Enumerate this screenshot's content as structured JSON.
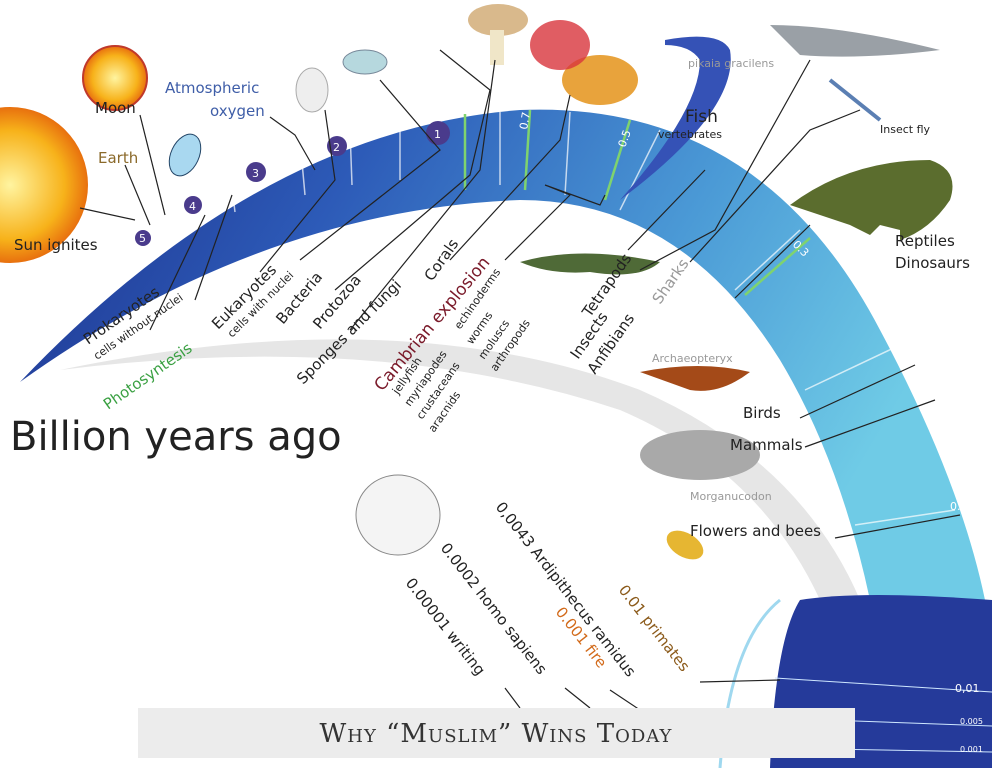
{
  "heading": "Billion years ago",
  "footer": "Why “Muslim” Wins Today",
  "arc_marks": [
    "5",
    "4",
    "3",
    "2",
    "1",
    "0.7",
    "0.5",
    "0.3",
    "0.1"
  ],
  "circle_marks": [
    "0,01",
    "0.005",
    "0.001"
  ],
  "events": {
    "sun": "Sun ignites",
    "moon": "Moon",
    "earth": "Earth",
    "oxygen": [
      "Atmospheric",
      "oxygen"
    ],
    "prokaryotes": "Prokaryotes",
    "prokaryotes_note": "cells without nuclei",
    "photosynthesis": "Photosyntesis",
    "eukaryotes": "Eukaryotes",
    "eukaryotes_note": "cells with nuclei",
    "bacteria": "Bacteria",
    "protozoa": "Protozoa",
    "sponges": "Sponges and fungi",
    "corals": "Corals",
    "cambrian": "Cambrian explosion",
    "cambrian_left": [
      "jellyfish",
      "myriapodes",
      "crustaceans",
      "aracnids"
    ],
    "cambrian_right": [
      "echinoderms",
      "worms",
      "moluscs",
      "arthropods"
    ],
    "fish": "Fish",
    "fish_note": "vertebrates",
    "pikaia": "pikaia gracilens",
    "insect_fly": "Insect fly",
    "reptiles": [
      "Reptiles",
      "Dinosaurs"
    ],
    "tetrapods": [
      "Tetrapods",
      "Insects",
      "Anfibians"
    ],
    "sharks": "Sharks",
    "archaeopteryx": "Archaeopteryx",
    "birds": "Birds",
    "mammals": "Mammals",
    "morganucodon": "Morganucodon",
    "flowers": "Flowers and bees",
    "ardipithecus": "0,0043 Ardipithecus ramidus",
    "primates": "0.01 primates",
    "fire": "0.001 fire",
    "homo": "0.0002 homo sapiens",
    "writing": "0.00001 writing"
  }
}
